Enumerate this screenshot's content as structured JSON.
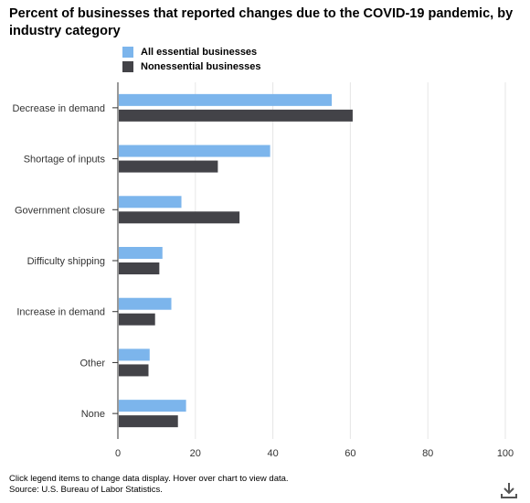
{
  "chart_data": {
    "type": "bar",
    "orientation": "horizontal",
    "title": "Percent of businesses that reported changes due to the COVID-19 pandemic, by industry category",
    "categories": [
      "Decrease in demand",
      "Shortage of inputs",
      "Government closure",
      "Difficulty shipping",
      "Increase in demand",
      "Other",
      "None"
    ],
    "series": [
      {
        "name": "All essential businesses",
        "values": [
          55.2,
          39.3,
          16.4,
          11.5,
          13.8,
          8.2,
          17.6
        ],
        "color": "#7cb5ec"
      },
      {
        "name": "Nonessential businesses",
        "values": [
          60.6,
          25.8,
          31.4,
          10.7,
          9.6,
          7.9,
          15.5
        ],
        "color": "#434348"
      }
    ],
    "xlim": [
      0,
      100
    ],
    "xticks": [
      0,
      20,
      40,
      60,
      80,
      100
    ],
    "xlabel": "",
    "ylabel": "",
    "grid": "vertical",
    "legend": "top-left"
  },
  "footnote": {
    "line1": "Click legend items to change data display. Hover over chart to view data.",
    "line2": "Source: U.S. Bureau of Labor Statistics."
  },
  "icons": {
    "download": "download-icon"
  }
}
